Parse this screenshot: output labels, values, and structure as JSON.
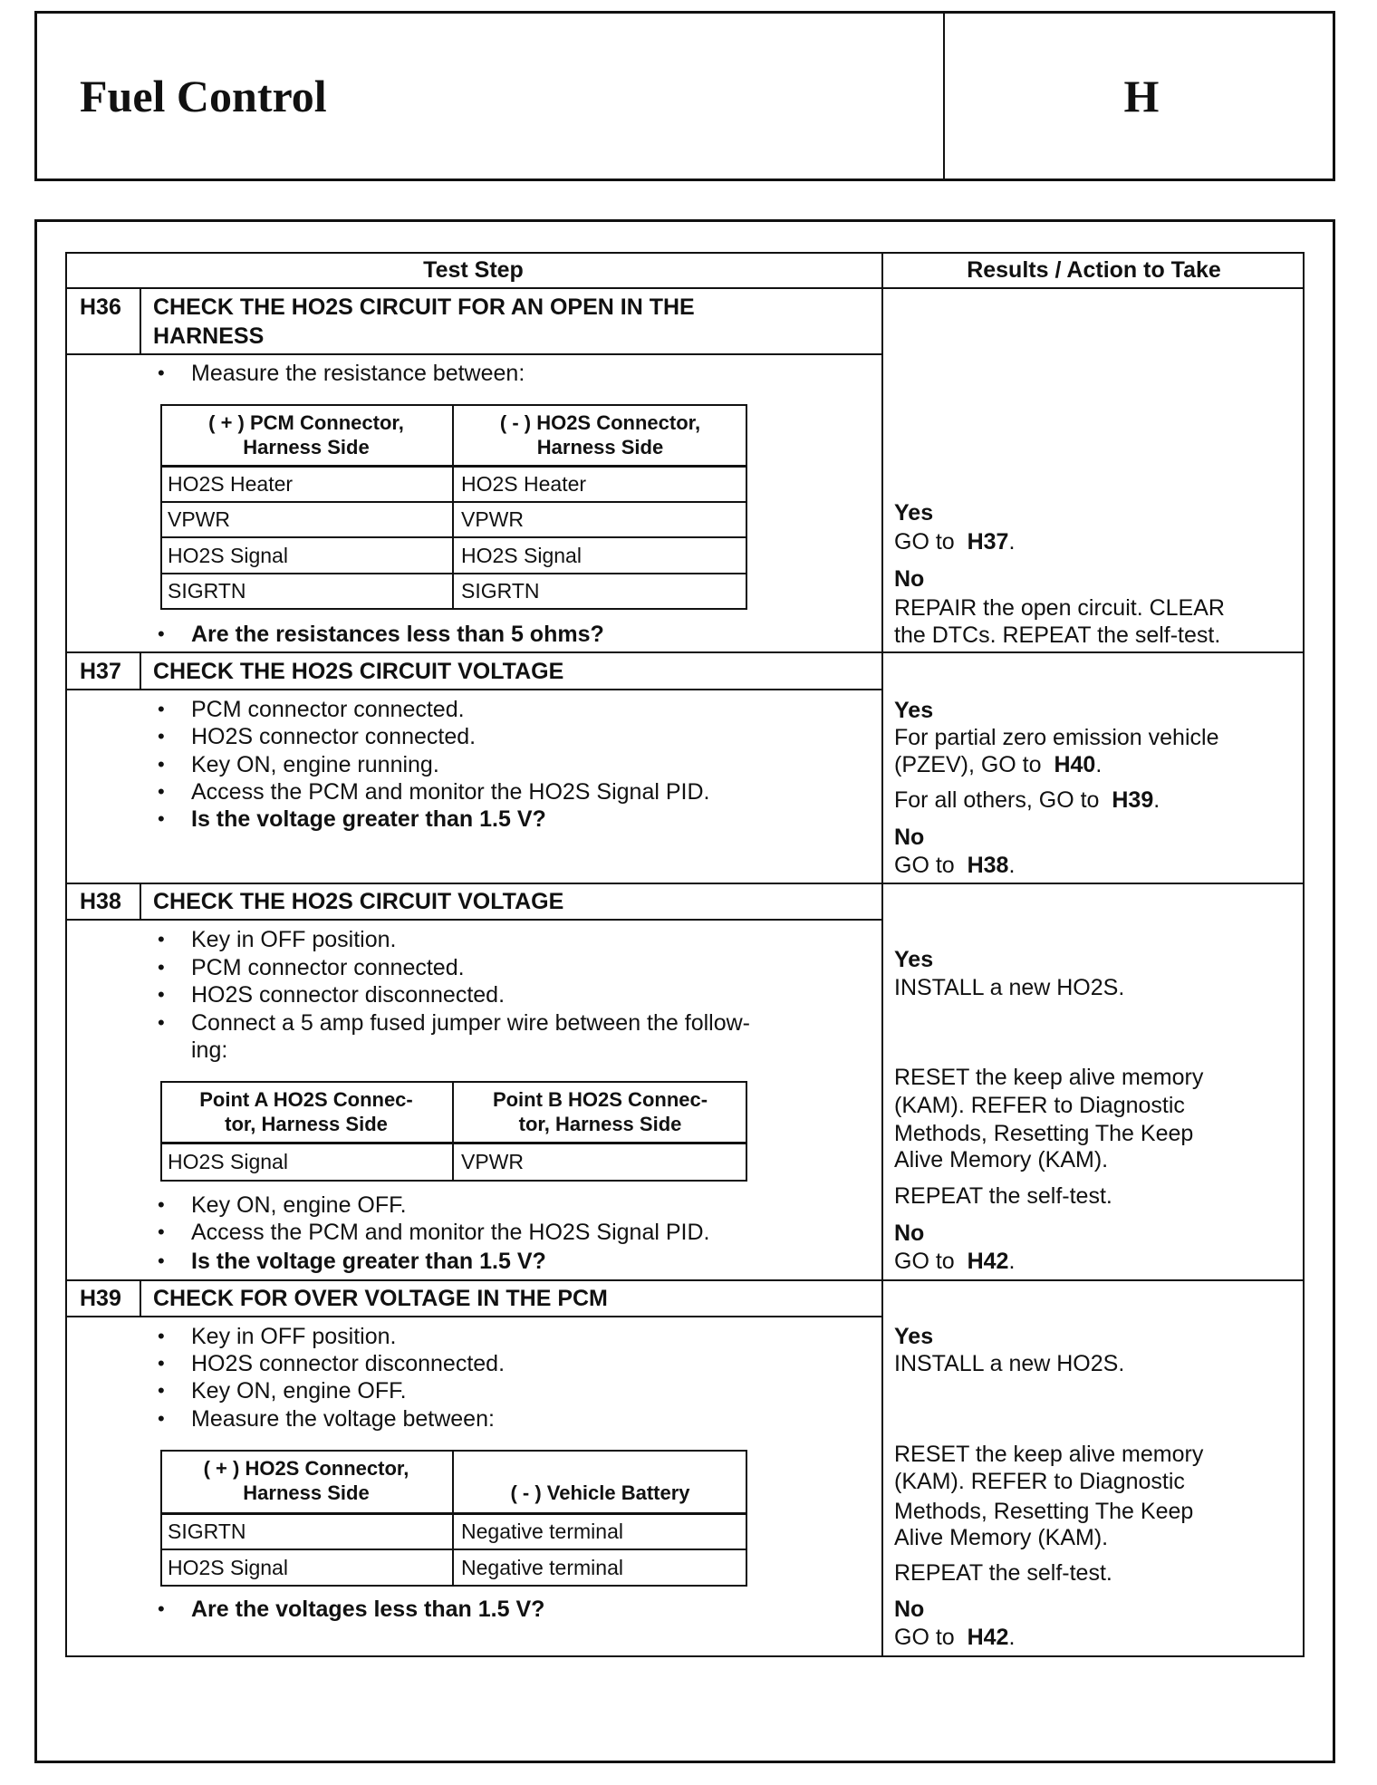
{
  "header": {
    "title": "Fuel Control",
    "section": "H"
  },
  "table": {
    "col_step": "Test Step",
    "col_results": "Results / Action to Take"
  },
  "h36": {
    "id": "H36",
    "title": [
      "CHECK THE HO2S CIRCUIT FOR AN OPEN IN THE",
      "HARNESS"
    ],
    "intro": "Measure the resistance between:",
    "inner_table": {
      "headers": [
        [
          "( + ) PCM Connector,",
          "Harness Side"
        ],
        [
          "( - ) HO2S Connector,",
          "Harness Side"
        ]
      ],
      "rows": [
        [
          "HO2S Heater",
          "HO2S Heater"
        ],
        [
          "VPWR",
          "VPWR"
        ],
        [
          "HO2S Signal",
          "HO2S Signal"
        ],
        [
          "SIGRTN",
          "SIGRTN"
        ]
      ]
    },
    "question": "Are the resistances less than 5 ohms?",
    "results": {
      "yes": "Yes",
      "yes_go": "GO to",
      "yes_target": "H37",
      "no": "No",
      "no_lines": [
        "REPAIR the open circuit. CLEAR",
        "the DTCs. REPEAT the self-test."
      ]
    }
  },
  "h37": {
    "id": "H37",
    "title": "CHECK THE HO2S CIRCUIT VOLTAGE",
    "bullets": [
      "PCM connector connected.",
      "HO2S connector connected.",
      "Key ON, engine running.",
      "Access the PCM and monitor the HO2S Signal PID."
    ],
    "question": "Is the voltage greater than 1.5 V?",
    "results": {
      "yes": "Yes",
      "yes_lines": [
        "For partial zero emission vehicle",
        "(PZEV), GO to"
      ],
      "yes_target": "H40",
      "others": "For all others, GO to",
      "others_target": "H39",
      "no": "No",
      "no_go": "GO to",
      "no_target": "H38"
    }
  },
  "h38": {
    "id": "H38",
    "title": "CHECK THE HO2S CIRCUIT VOLTAGE",
    "bullets": [
      "Key in OFF position.",
      "PCM connector connected.",
      "HO2S connector disconnected.",
      "Connect a 5 amp fused jumper wire between the follow-",
      "ing:"
    ],
    "inner_table": {
      "headers": [
        [
          "Point A HO2S Connec-",
          "tor, Harness Side"
        ],
        [
          "Point B HO2S Connec-",
          "tor, Harness Side"
        ]
      ],
      "rows": [
        [
          "HO2S Signal",
          "VPWR"
        ]
      ]
    },
    "bullets2": [
      "Key ON, engine OFF.",
      "Access the PCM and monitor the HO2S Signal PID."
    ],
    "question": "Is the voltage greater than 1.5 V?",
    "results": {
      "yes": "Yes",
      "install": "INSTALL a new HO2S.",
      "reset_lines": [
        "RESET the keep alive memory",
        "(KAM). REFER to Diagnostic",
        "Methods, Resetting The Keep",
        "Alive Memory (KAM)."
      ],
      "repeat": "REPEAT the self-test.",
      "no": "No",
      "no_go": "GO to",
      "no_target": "H42"
    }
  },
  "h39": {
    "id": "H39",
    "title": "CHECK FOR OVER VOLTAGE IN THE PCM",
    "bullets": [
      "Key in OFF position.",
      "HO2S connector disconnected.",
      "Key ON, engine OFF.",
      "Measure the voltage between:"
    ],
    "inner_table": {
      "headers": [
        [
          "( + ) HO2S Connector,",
          "Harness Side"
        ],
        [
          "( - ) Vehicle Battery"
        ]
      ],
      "rows": [
        [
          "SIGRTN",
          "Negative terminal"
        ],
        [
          "HO2S Signal",
          "Negative terminal"
        ]
      ]
    },
    "question": "Are the voltages less than 1.5 V?",
    "results": {
      "yes": "Yes",
      "install": "INSTALL a new HO2S.",
      "reset_lines": [
        "RESET the keep alive memory",
        "(KAM). REFER to Diagnostic",
        "Methods, Resetting The Keep",
        "Alive Memory (KAM)."
      ],
      "repeat": "REPEAT the self-test.",
      "no": "No",
      "no_go": "GO to",
      "no_target": "H42"
    }
  }
}
